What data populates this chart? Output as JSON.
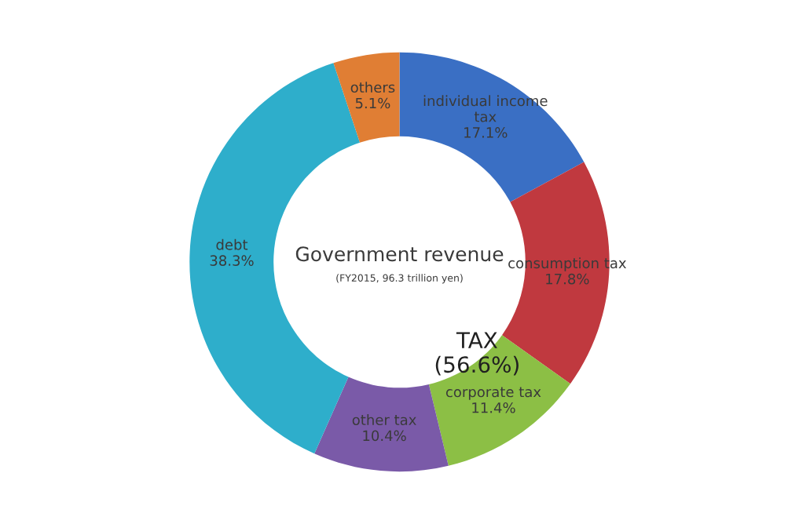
{
  "chart_data": {
    "type": "donut",
    "title": "Government revenue",
    "subtitle": "(FY2015, 96.3 trillion yen)",
    "categories": [
      "individual income\ntax",
      "consumption tax",
      "corporate tax",
      "other tax",
      "debt",
      "others"
    ],
    "values": [
      17.1,
      17.8,
      11.4,
      10.4,
      38.3,
      5.1
    ],
    "colors": [
      "#3a6fc4",
      "#c0393f",
      "#8cbf45",
      "#7a5aa8",
      "#2eaecb",
      "#e07e34"
    ],
    "value_labels": [
      "17.1%",
      "17.8%",
      "11.4%",
      "10.4%",
      "38.3%",
      "5.1%"
    ],
    "annotations": [
      "TAX\n(56.6%)"
    ],
    "legend": false
  }
}
